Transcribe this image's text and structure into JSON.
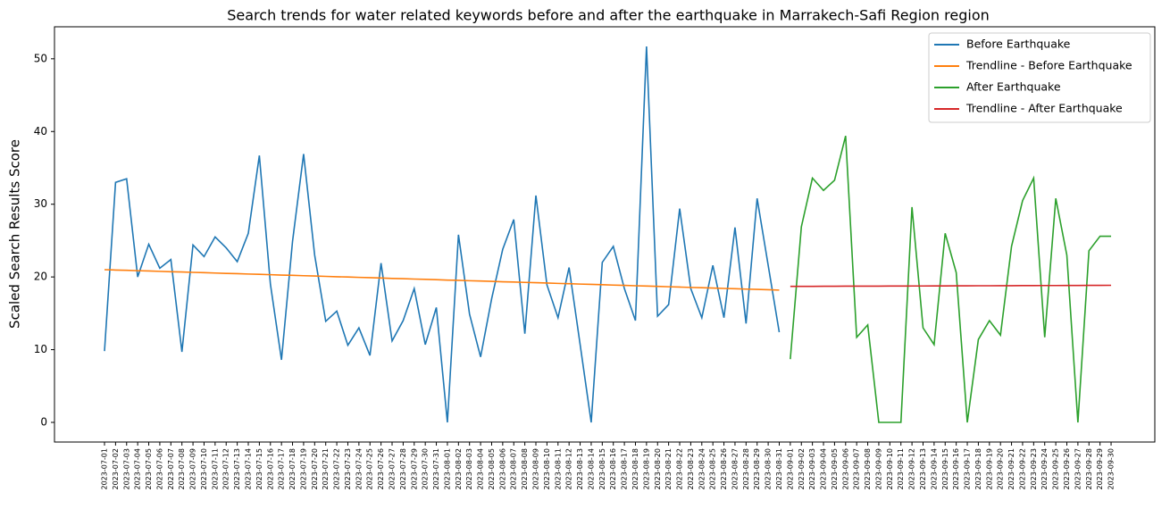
{
  "chart_data": {
    "type": "line",
    "title": "Search trends for water related keywords before and after the earthquake in Marrakech-Safi Region region",
    "y_label": "Scaled Search Results Score",
    "categories": [
      "2023-07-01",
      "2023-07-02",
      "2023-07-03",
      "2023-07-04",
      "2023-07-05",
      "2023-07-06",
      "2023-07-07",
      "2023-07-08",
      "2023-07-09",
      "2023-07-10",
      "2023-07-11",
      "2023-07-12",
      "2023-07-13",
      "2023-07-14",
      "2023-07-15",
      "2023-07-16",
      "2023-07-17",
      "2023-07-18",
      "2023-07-19",
      "2023-07-20",
      "2023-07-21",
      "2023-07-22",
      "2023-07-23",
      "2023-07-24",
      "2023-07-25",
      "2023-07-26",
      "2023-07-27",
      "2023-07-28",
      "2023-07-29",
      "2023-07-30",
      "2023-07-31",
      "2023-08-01",
      "2023-08-02",
      "2023-08-03",
      "2023-08-04",
      "2023-08-05",
      "2023-08-06",
      "2023-08-07",
      "2023-08-08",
      "2023-08-09",
      "2023-08-10",
      "2023-08-11",
      "2023-08-12",
      "2023-08-13",
      "2023-08-14",
      "2023-08-15",
      "2023-08-16",
      "2023-08-17",
      "2023-08-18",
      "2023-08-19",
      "2023-08-20",
      "2023-08-21",
      "2023-08-22",
      "2023-08-23",
      "2023-08-24",
      "2023-08-25",
      "2023-08-26",
      "2023-08-27",
      "2023-08-28",
      "2023-08-29",
      "2023-08-30",
      "2023-08-31",
      "2023-09-01",
      "2023-09-02",
      "2023-09-03",
      "2023-09-04",
      "2023-09-05",
      "2023-09-06",
      "2023-09-07",
      "2023-09-08",
      "2023-09-09",
      "2023-09-10",
      "2023-09-11",
      "2023-09-12",
      "2023-09-13",
      "2023-09-14",
      "2023-09-15",
      "2023-09-16",
      "2023-09-17",
      "2023-09-18",
      "2023-09-19",
      "2023-09-20",
      "2023-09-21",
      "2023-09-22",
      "2023-09-23",
      "2023-09-24",
      "2023-09-25",
      "2023-09-26",
      "2023-09-27",
      "2023-09-28",
      "2023-09-29",
      "2023-09-30"
    ],
    "series": [
      {
        "name": "Before Earthquake",
        "color": "#1f77b4",
        "values": [
          9.8,
          33.0,
          33.5,
          20.0,
          24.5,
          21.2,
          22.4,
          9.7,
          24.4,
          22.8,
          25.5,
          24.0,
          22.1,
          26.0,
          36.7,
          19.0,
          8.6,
          24.9,
          36.9,
          23.0,
          13.9,
          15.3,
          10.6,
          13.0,
          9.2,
          21.9,
          11.2,
          14.0,
          18.4,
          10.7,
          15.8,
          0,
          25.8,
          14.9,
          9.0,
          17.0,
          23.8,
          27.9,
          12.2,
          31.2,
          18.9,
          14.4,
          21.3,
          10.7,
          0,
          22.0,
          24.2,
          18.4,
          14.0,
          51.7,
          14.6,
          16.2,
          29.4,
          18.4,
          14.4,
          21.6,
          14.4,
          26.8,
          13.6,
          30.8,
          21.6,
          12.4,
          null,
          null,
          null,
          null,
          null,
          null,
          null,
          null,
          null,
          null,
          null,
          null,
          null,
          null,
          null,
          null,
          null,
          null,
          null,
          null,
          null,
          null,
          null,
          null,
          null,
          null,
          null,
          null,
          null,
          null
        ]
      },
      {
        "name": "Trendline - Before Earthquake",
        "color": "#ff7f0e",
        "values": [
          21.0,
          20.95,
          20.91,
          20.86,
          20.82,
          20.77,
          20.72,
          20.68,
          20.63,
          20.59,
          20.54,
          20.49,
          20.45,
          20.4,
          20.36,
          20.31,
          20.26,
          20.22,
          20.17,
          20.13,
          20.08,
          20.03,
          19.99,
          19.94,
          19.9,
          19.85,
          19.8,
          19.76,
          19.71,
          19.67,
          19.62,
          19.57,
          19.53,
          19.48,
          19.44,
          19.39,
          19.34,
          19.3,
          19.25,
          19.21,
          19.16,
          19.11,
          19.07,
          19.02,
          18.98,
          18.93,
          18.88,
          18.84,
          18.79,
          18.75,
          18.7,
          18.65,
          18.61,
          18.56,
          18.52,
          18.47,
          18.42,
          18.38,
          18.33,
          18.29,
          18.24,
          18.19,
          null,
          null,
          null,
          null,
          null,
          null,
          null,
          null,
          null,
          null,
          null,
          null,
          null,
          null,
          null,
          null,
          null,
          null,
          null,
          null,
          null,
          null,
          null,
          null,
          null,
          null,
          null,
          null,
          null,
          null
        ]
      },
      {
        "name": "After Earthquake",
        "color": "#2ca02c",
        "values": [
          null,
          null,
          null,
          null,
          null,
          null,
          null,
          null,
          null,
          null,
          null,
          null,
          null,
          null,
          null,
          null,
          null,
          null,
          null,
          null,
          null,
          null,
          null,
          null,
          null,
          null,
          null,
          null,
          null,
          null,
          null,
          null,
          null,
          null,
          null,
          null,
          null,
          null,
          null,
          null,
          null,
          null,
          null,
          null,
          null,
          null,
          null,
          null,
          null,
          null,
          null,
          null,
          null,
          null,
          null,
          null,
          null,
          null,
          null,
          null,
          null,
          null,
          8.7,
          26.9,
          33.6,
          31.9,
          33.3,
          39.4,
          11.7,
          13.4,
          0,
          0,
          0,
          29.6,
          13.0,
          10.7,
          26.0,
          20.6,
          0,
          11.4,
          14.0,
          12.0,
          24.2,
          30.5,
          33.6,
          11.7,
          30.8,
          23.0,
          0,
          23.6,
          25.6,
          25.6
        ]
      },
      {
        "name": "Trendline - After Earthquake",
        "color": "#d62728",
        "values": [
          null,
          null,
          null,
          null,
          null,
          null,
          null,
          null,
          null,
          null,
          null,
          null,
          null,
          null,
          null,
          null,
          null,
          null,
          null,
          null,
          null,
          null,
          null,
          null,
          null,
          null,
          null,
          null,
          null,
          null,
          null,
          null,
          null,
          null,
          null,
          null,
          null,
          null,
          null,
          null,
          null,
          null,
          null,
          null,
          null,
          null,
          null,
          null,
          null,
          null,
          null,
          null,
          null,
          null,
          null,
          null,
          null,
          null,
          null,
          null,
          null,
          null,
          18.7,
          18.71,
          18.71,
          18.72,
          18.72,
          18.73,
          18.73,
          18.74,
          18.74,
          18.75,
          18.75,
          18.76,
          18.76,
          18.77,
          18.77,
          18.78,
          18.78,
          18.79,
          18.79,
          18.8,
          18.8,
          18.81,
          18.81,
          18.82,
          18.82,
          18.83,
          18.83,
          18.84,
          18.84,
          18.85
        ]
      }
    ],
    "ylim": [
      -2.7,
      54.4
    ],
    "yticks": [
      0,
      10,
      20,
      30,
      40,
      50
    ],
    "grid": false,
    "legend": "upper right"
  }
}
